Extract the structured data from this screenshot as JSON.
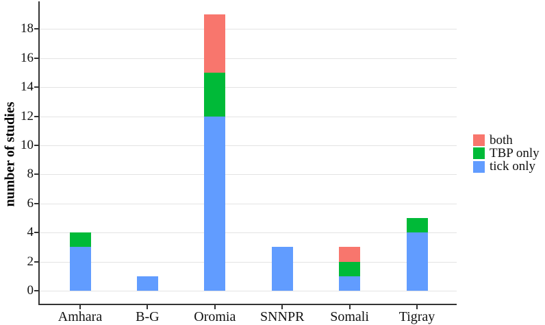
{
  "chart_data": {
    "type": "bar",
    "stacked": true,
    "title": "",
    "xlabel": "",
    "ylabel": "number of studies",
    "categories": [
      "Amhara",
      "B-G",
      "Oromia",
      "SNNPR",
      "Somali",
      "Tigray"
    ],
    "series": [
      {
        "name": "tick only",
        "color": "#619CFF",
        "values": [
          3,
          1,
          12,
          3,
          1,
          4
        ]
      },
      {
        "name": "TBP only",
        "color": "#00BA38",
        "values": [
          1,
          0,
          3,
          0,
          1,
          1
        ]
      },
      {
        "name": "both",
        "color": "#F8766D",
        "values": [
          0,
          0,
          4,
          0,
          1,
          0
        ]
      }
    ],
    "totals": [
      4,
      1,
      19,
      3,
      3,
      5
    ],
    "yticks": [
      0,
      2,
      4,
      6,
      8,
      10,
      12,
      14,
      16,
      18
    ],
    "ylim": [
      0,
      19
    ],
    "grid": true,
    "legend": {
      "position": "right",
      "entries": [
        {
          "label": "both",
          "color": "#F8766D"
        },
        {
          "label": "TBP only",
          "color": "#00BA38"
        },
        {
          "label": "tick only",
          "color": "#619CFF"
        }
      ]
    },
    "colors": {
      "grid": "#E3E3E3",
      "axis": "#333333",
      "text": "#111111",
      "background": "#ffffff"
    }
  }
}
